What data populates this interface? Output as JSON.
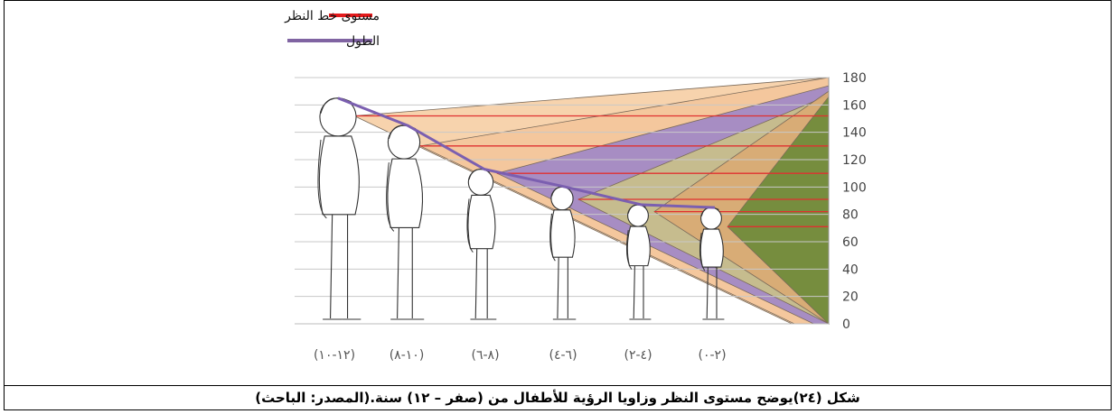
{
  "caption": "شكل (٢٤)يوضح مستوى النظر وزاويا الرؤية للأطفال من (صفر – ١٢) سنة.(المصدر: الباحث)",
  "chart_data": {
    "type": "line",
    "title": "",
    "xlabel": "",
    "ylabel": "",
    "ylim": [
      0,
      180
    ],
    "yticks": [
      "0",
      "20",
      "40",
      "60",
      "80",
      "100",
      "120",
      "140",
      "160",
      "180"
    ],
    "grid": true,
    "legend_position": "top-center",
    "categories": [
      "(١٢-١٠)",
      "(١٠-٨)",
      "(٨-٦)",
      "(٦-٤)",
      "(٤-٢)",
      "(٢-٠)"
    ],
    "series": [
      {
        "name": "الطول",
        "color": "#8064a2",
        "values": [
          165,
          145,
          113,
          100,
          87,
          85
        ]
      },
      {
        "name": "مستوى خط النظر",
        "color": "#e41a1c",
        "values": [
          152,
          130,
          110,
          91,
          82,
          71
        ]
      }
    ],
    "sight_cones": [
      {
        "group": "(١٢-١٠)",
        "color": "#f6cfa6"
      },
      {
        "group": "(١٠-٨)",
        "color": "#f3c59b"
      },
      {
        "group": "(٨-٦)",
        "color": "#9f88c7"
      },
      {
        "group": "(٦-٤)",
        "color": "#c9c08a"
      },
      {
        "group": "(٤-٢)",
        "color": "#d9aa74"
      },
      {
        "group": "(٢-٠)",
        "color": "#6e8a3a"
      }
    ]
  }
}
